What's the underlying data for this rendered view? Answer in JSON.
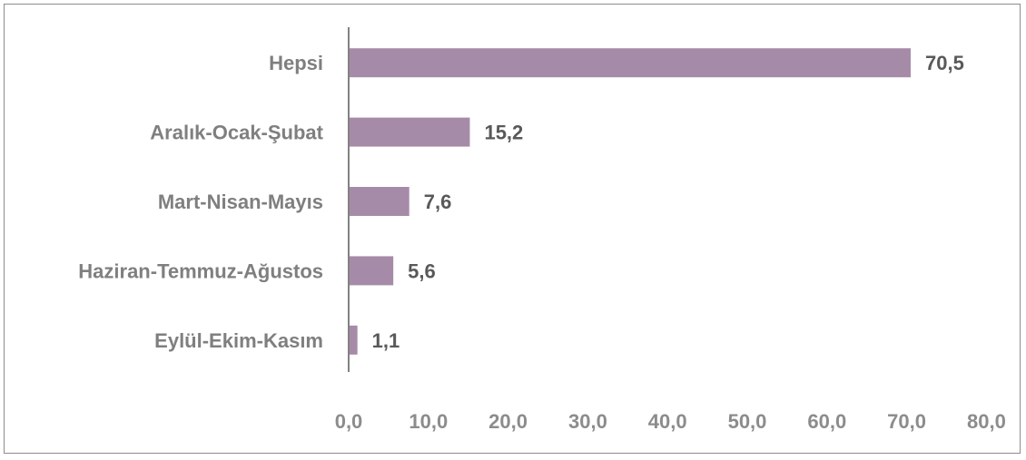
{
  "chart_data": {
    "type": "bar",
    "orientation": "horizontal",
    "categories": [
      "Hepsi",
      "Aralık-Ocak-Şubat",
      "Mart-Nisan-Mayıs",
      "Haziran-Temmuz-Ağustos",
      "Eylül-Ekim-Kasım"
    ],
    "values": [
      70.5,
      15.2,
      7.6,
      5.6,
      1.1
    ],
    "value_labels": [
      "70,5",
      "15,2",
      "7,6",
      "5,6",
      "1,1"
    ],
    "xlim": [
      0,
      80
    ],
    "x_ticks": [
      0,
      10,
      20,
      30,
      40,
      50,
      60,
      70,
      80
    ],
    "x_tick_labels": [
      "0,0",
      "10,0",
      "20,0",
      "30,0",
      "40,0",
      "50,0",
      "60,0",
      "70,0",
      "80,0"
    ],
    "grid": false,
    "legend": "none",
    "bar_color": "#a68ba8"
  }
}
